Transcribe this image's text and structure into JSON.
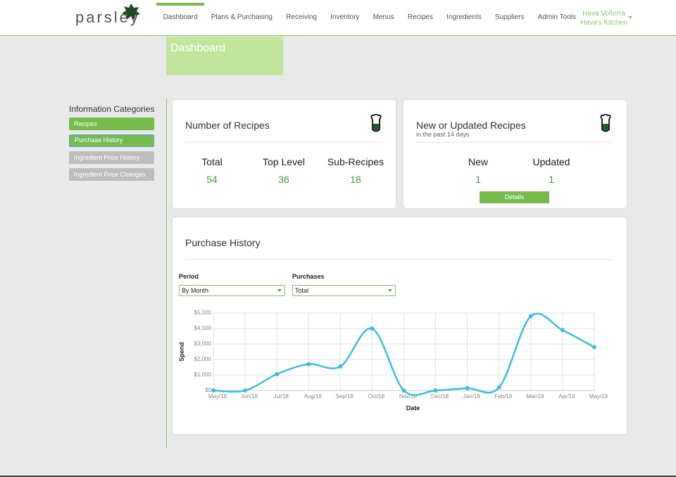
{
  "nav": {
    "logo": "parsley",
    "items": [
      "Dashboard",
      "Plans & Purchasing",
      "Receiving",
      "Inventory",
      "Menus",
      "Recipes",
      "Ingredients",
      "Suppliers",
      "Admin Tools"
    ],
    "active": 0,
    "user": {
      "name": "Hava Volterra",
      "kitchen": "Hava's Kitchen"
    }
  },
  "page_title": "Dashboard",
  "sidebar": {
    "title": "Information Categories",
    "items": [
      {
        "label": "Recipes",
        "state": "active"
      },
      {
        "label": "Purchase History",
        "state": "focused"
      },
      {
        "label": "Ingredient Price History",
        "state": "disabled"
      },
      {
        "label": "Ingredient Price Changes",
        "state": "disabled"
      }
    ]
  },
  "recipes_card": {
    "title": "Number of Recipes",
    "stats": [
      {
        "label": "Total",
        "value": 54
      },
      {
        "label": "Top Level",
        "value": 36
      },
      {
        "label": "Sub-Recipes",
        "value": 18
      }
    ]
  },
  "updates_card": {
    "title": "New or Updated Recipes",
    "subtitle": "in the past 14 days",
    "stats": [
      {
        "label": "New",
        "value": 1
      },
      {
        "label": "Updated",
        "value": 1
      }
    ],
    "button": "Details"
  },
  "purchase_card": {
    "title": "Purchase History",
    "filters": [
      {
        "label": "Period",
        "value": "By Month"
      },
      {
        "label": "Purchases",
        "value": "Total"
      }
    ]
  },
  "chart_data": {
    "type": "line",
    "x_label": "Date",
    "y_label": "Spend",
    "categories": [
      "May/18",
      "Jun/18",
      "Jul/18",
      "Aug/18",
      "Sep/18",
      "Oct/18",
      "Nov/18",
      "Dec/18",
      "Jan/19",
      "Feb/19",
      "Mar/19",
      "Apr/19",
      "May/19"
    ],
    "values": [
      0,
      0,
      1050,
      1700,
      1550,
      4000,
      0,
      0,
      150,
      200,
      4800,
      3900,
      2800
    ],
    "color": "#3fbfe0",
    "smooth": true,
    "grid": true,
    "ylim": [
      0,
      5000
    ],
    "yticks": [
      {
        "value": 0,
        "label": "$0"
      },
      {
        "value": 1000,
        "label": "$1,000"
      },
      {
        "value": 2000,
        "label": "$2,000"
      },
      {
        "value": 3000,
        "label": "$3,000"
      },
      {
        "value": 4000,
        "label": "$4,000"
      },
      {
        "value": 5000,
        "label": "$5,000"
      }
    ]
  }
}
